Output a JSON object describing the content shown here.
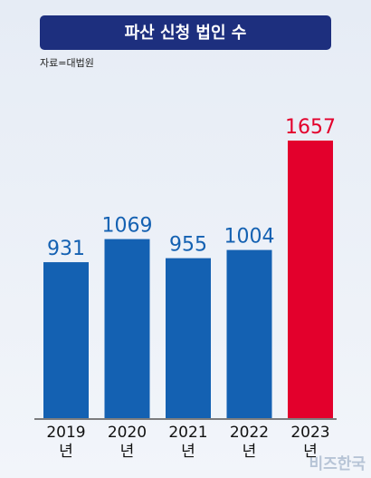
{
  "chart_data": {
    "type": "bar",
    "title": "파산 신청 법인 수",
    "source": "자료=대법원",
    "categories": [
      "2019\n년",
      "2020\n년",
      "2021\n년",
      "2022\n년",
      "2023\n년"
    ],
    "values": [
      931,
      1069,
      955,
      1004,
      1657
    ],
    "colors": [
      "#1461b2",
      "#1461b2",
      "#1461b2",
      "#1461b2",
      "#e3002c"
    ],
    "watermark": "비즈한국"
  }
}
